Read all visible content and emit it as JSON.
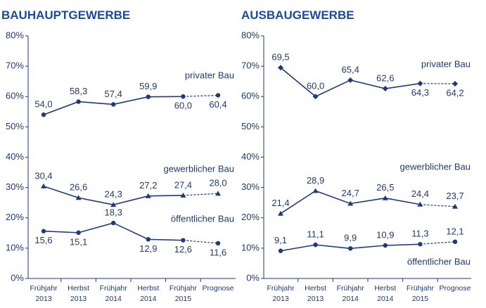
{
  "chart_data": [
    {
      "type": "line",
      "title": "BAUHAUPTGEWERBE",
      "categories": [
        "Frühjahr 2013",
        "Herbst 2013",
        "Frühjahr 2014",
        "Herbst 2014",
        "Frühjahr 2015",
        "Prognose"
      ],
      "ylim": [
        0,
        80
      ],
      "yticks": [
        {
          "value": 0,
          "label": "0%"
        },
        {
          "value": 10,
          "label": "10%"
        },
        {
          "value": 20,
          "label": "20%"
        },
        {
          "value": 30,
          "label": "30%"
        },
        {
          "value": 40,
          "label": "40%"
        },
        {
          "value": 50,
          "label": "50%"
        },
        {
          "value": 60,
          "label": "60%"
        },
        {
          "value": 70,
          "label": "70%"
        },
        {
          "value": 80,
          "label": "80%"
        }
      ],
      "forecast_dashed": true,
      "series": [
        {
          "name": "privater Bau",
          "color": "#1f3a78",
          "marker": "circle",
          "values": [
            54.0,
            58.3,
            57.4,
            59.9,
            60.0,
            60.4
          ],
          "value_labels": [
            "54,0",
            "58,3",
            "57,4",
            "59,9",
            "60,0",
            "60,4"
          ]
        },
        {
          "name": "gewerblicher Bau",
          "color": "#1f3a78",
          "marker": "triangle",
          "values": [
            30.4,
            26.6,
            24.3,
            27.2,
            27.4,
            28.0
          ],
          "value_labels": [
            "30,4",
            "26,6",
            "24,3",
            "27,2",
            "27,4",
            "28,0"
          ]
        },
        {
          "name": "öffentlicher Bau",
          "color": "#1f3a78",
          "marker": "circle",
          "values": [
            15.6,
            15.1,
            18.3,
            12.9,
            12.6,
            11.6
          ],
          "value_labels": [
            "15,6",
            "15,1",
            "18,3",
            "12,9",
            "12,6",
            "11,6"
          ]
        }
      ]
    },
    {
      "type": "line",
      "title": "AUSBAUGEWERBE",
      "categories": [
        "Frühjahr 2013",
        "Herbst 2013",
        "Frühjahr 2014",
        "Herbst 2014",
        "Frühjahr 2015",
        "Prognose"
      ],
      "ylim": [
        0,
        80
      ],
      "yticks": [
        {
          "value": 0,
          "label": "0%"
        },
        {
          "value": 10,
          "label": "10%"
        },
        {
          "value": 20,
          "label": "20%"
        },
        {
          "value": 30,
          "label": "30%"
        },
        {
          "value": 40,
          "label": "40%"
        },
        {
          "value": 50,
          "label": "50%"
        },
        {
          "value": 60,
          "label": "60%"
        },
        {
          "value": 70,
          "label": "70%"
        },
        {
          "value": 80,
          "label": "80%"
        }
      ],
      "forecast_dashed": true,
      "series": [
        {
          "name": "privater Bau",
          "color": "#1f3a78",
          "marker": "diamond",
          "values": [
            69.5,
            60.0,
            65.4,
            62.6,
            64.3,
            64.2
          ],
          "value_labels": [
            "69,5",
            "60,0",
            "65,4",
            "62,6",
            "64,3",
            "64,2"
          ]
        },
        {
          "name": "gewerblicher Bau",
          "color": "#1f3a78",
          "marker": "triangle",
          "values": [
            21.4,
            28.9,
            24.7,
            26.5,
            24.4,
            23.7
          ],
          "value_labels": [
            "21,4",
            "28,9",
            "24,7",
            "26,5",
            "24,4",
            "23,7"
          ]
        },
        {
          "name": "öffentlicher Bau",
          "color": "#1f3a78",
          "marker": "circle",
          "values": [
            9.1,
            11.1,
            9.9,
            10.9,
            11.3,
            12.1
          ],
          "value_labels": [
            "9,1",
            "11,1",
            "9,9",
            "10,9",
            "11,3",
            "12,1"
          ]
        }
      ]
    }
  ]
}
